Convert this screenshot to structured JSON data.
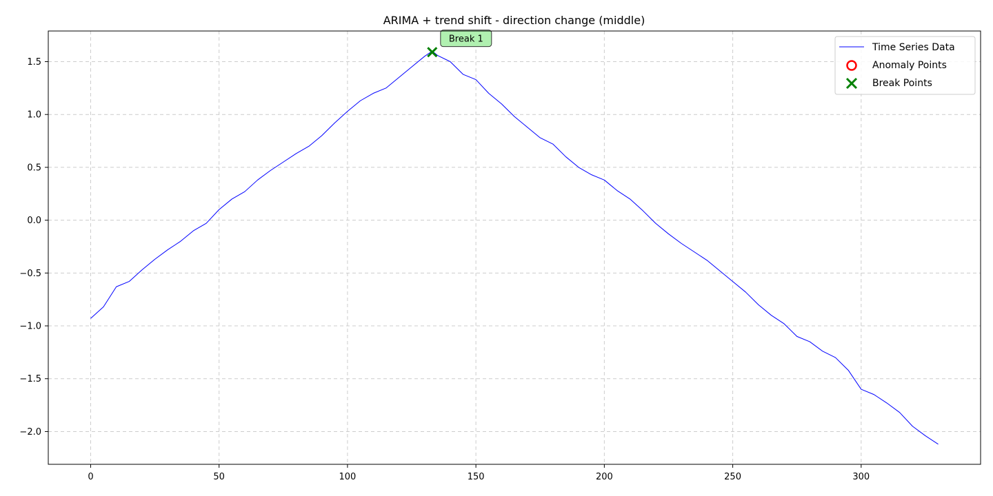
{
  "chart_data": {
    "type": "line",
    "title": "ARIMA + trend shift - direction change (middle)",
    "xlabel": "",
    "ylabel": "",
    "xlim": [
      -16.5,
      346.5
    ],
    "ylim": [
      -2.31,
      1.79
    ],
    "xticks": [
      0,
      50,
      100,
      150,
      200,
      250,
      300
    ],
    "yticks": [
      -2.0,
      -1.5,
      -1.0,
      -0.5,
      0.0,
      0.5,
      1.0,
      1.5
    ],
    "xtick_labels": [
      "0",
      "50",
      "100",
      "150",
      "200",
      "250",
      "300"
    ],
    "ytick_labels": [
      "−2.0",
      "−1.5",
      "−1.0",
      "−0.5",
      "0.0",
      "0.5",
      "1.0",
      "1.5"
    ],
    "grid": true,
    "legend_position": "top-right",
    "legend": [
      "Time Series Data",
      "Anomaly Points",
      "Break Points"
    ],
    "colors": {
      "series": "#0000ff",
      "anomaly": "#ff0000",
      "break": "#008000",
      "annotation_bg": "#b0f0b0",
      "grid": "#cccccc"
    },
    "series": [
      {
        "name": "Time Series Data",
        "x": [
          0,
          5,
          10,
          15,
          20,
          25,
          30,
          35,
          40,
          45,
          50,
          55,
          60,
          65,
          70,
          75,
          80,
          85,
          90,
          95,
          100,
          105,
          110,
          115,
          120,
          125,
          130,
          133,
          135,
          140,
          145,
          150,
          155,
          160,
          165,
          170,
          175,
          180,
          185,
          190,
          195,
          200,
          205,
          210,
          215,
          220,
          225,
          230,
          235,
          240,
          245,
          250,
          255,
          260,
          265,
          270,
          275,
          280,
          285,
          290,
          295,
          300,
          305,
          310,
          315,
          320,
          325,
          330
        ],
        "y": [
          -0.93,
          -0.82,
          -0.63,
          -0.58,
          -0.47,
          -0.37,
          -0.28,
          -0.2,
          -0.1,
          -0.03,
          0.1,
          0.2,
          0.27,
          0.38,
          0.47,
          0.55,
          0.63,
          0.7,
          0.8,
          0.92,
          1.03,
          1.13,
          1.2,
          1.25,
          1.35,
          1.45,
          1.55,
          1.6,
          1.56,
          1.5,
          1.38,
          1.33,
          1.2,
          1.1,
          0.98,
          0.88,
          0.78,
          0.72,
          0.6,
          0.5,
          0.43,
          0.38,
          0.28,
          0.2,
          0.09,
          -0.03,
          -0.13,
          -0.22,
          -0.3,
          -0.38,
          -0.48,
          -0.58,
          -0.68,
          -0.8,
          -0.9,
          -0.98,
          -1.1,
          -1.15,
          -1.24,
          -1.3,
          -1.42,
          -1.6,
          -1.65,
          -1.73,
          -1.82,
          -1.95,
          -2.04,
          -2.12
        ]
      }
    ],
    "anomaly_points": [],
    "break_points": [
      {
        "x": 133,
        "y": 1.59,
        "label": "Break 1"
      }
    ]
  }
}
